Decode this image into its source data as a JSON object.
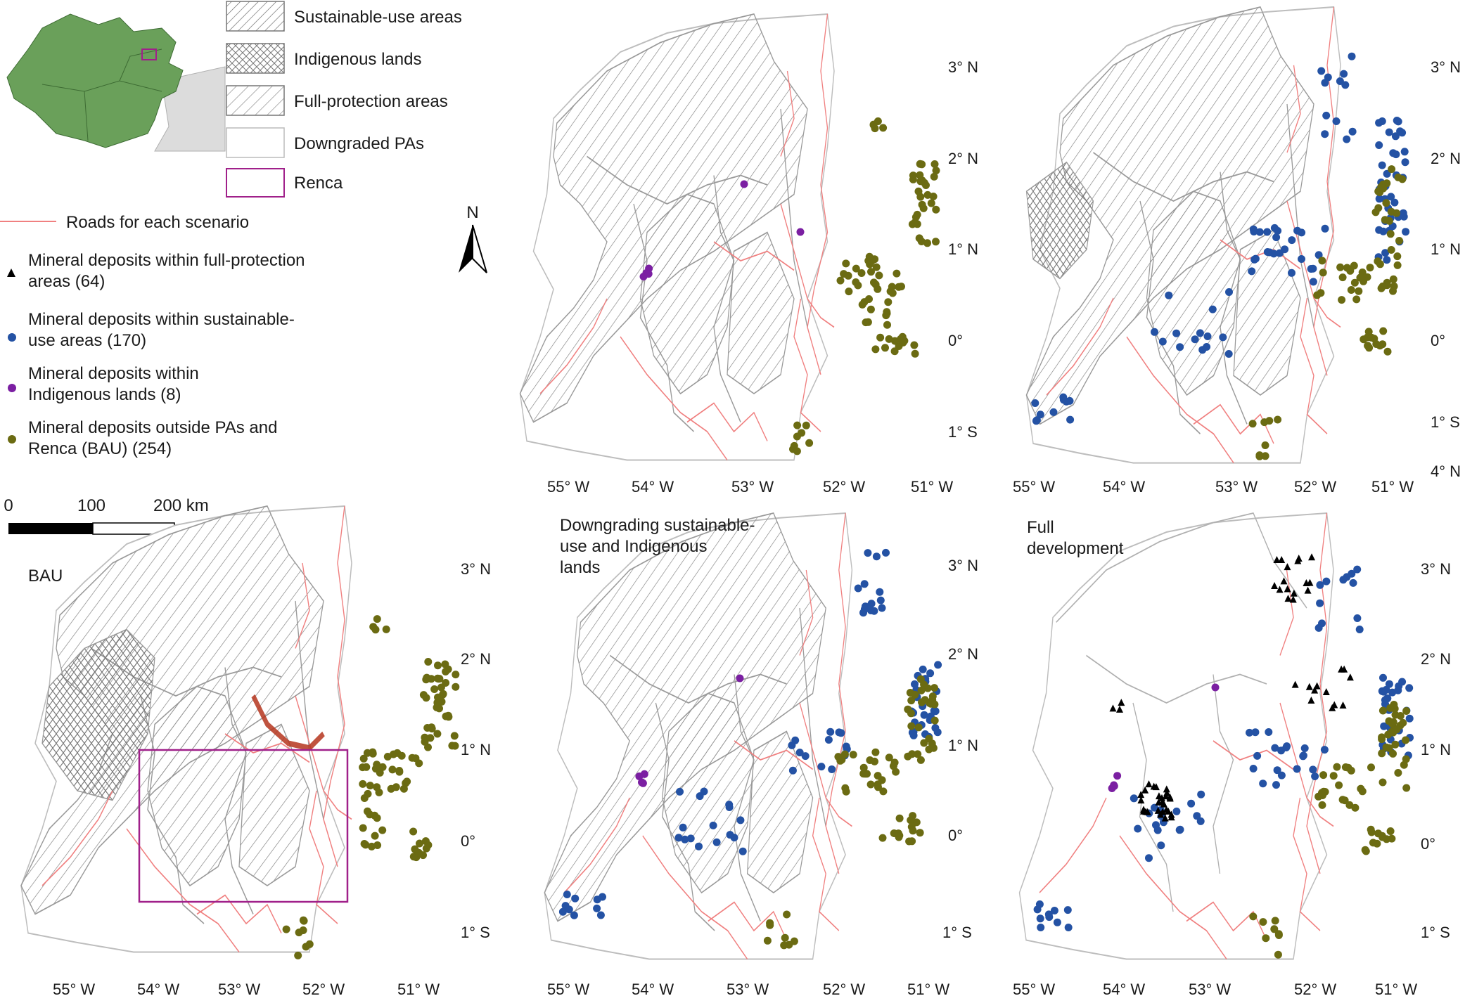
{
  "legend": {
    "sustainable_use": "Sustainable-use areas",
    "indigenous": "Indigenous lands",
    "full_protection": "Full-protection areas",
    "downgraded": "Downgraded PAs",
    "renca": "Renca",
    "roads": "Roads for each scenario",
    "deposits_full_protection": [
      "Mineral deposits within full-protection",
      "areas (64)"
    ],
    "deposits_sustainable": [
      "Mineral deposits within sustainable-",
      "use areas (170)"
    ],
    "deposits_indigenous": [
      "Mineral deposits within",
      "Indigenous lands (8)"
    ],
    "deposits_outside": [
      "Mineral deposits outside PAs and",
      "Renca (BAU) (254)"
    ]
  },
  "north_arrow_label": "N",
  "scale_bar": {
    "labels": [
      "0",
      "100",
      "200 km"
    ]
  },
  "scenarios": {
    "bau": "BAU",
    "downgrading": [
      "Downgrading sustainable-",
      "use and Indigenous",
      "lands"
    ],
    "full": [
      "Full",
      "development"
    ]
  },
  "axes": {
    "lon_labels": [
      "55° W",
      "54° W",
      "53° W",
      "52° W",
      "51° W"
    ],
    "lat_labels_tr": [
      "3° N",
      "2° N",
      "1° N",
      "0°",
      "1° S",
      "4° N"
    ],
    "lat_labels": [
      "3° N",
      "2° N",
      "1° N",
      "0°",
      "1° S"
    ]
  },
  "colors": {
    "full_protection": "#000000",
    "sustainable": "#2452a4",
    "indigenous": "#7b1fa2",
    "outside": "#6b6b12",
    "roads": "#f08080",
    "renca": "#a0208a",
    "inset_land": "#6aa05a"
  }
}
